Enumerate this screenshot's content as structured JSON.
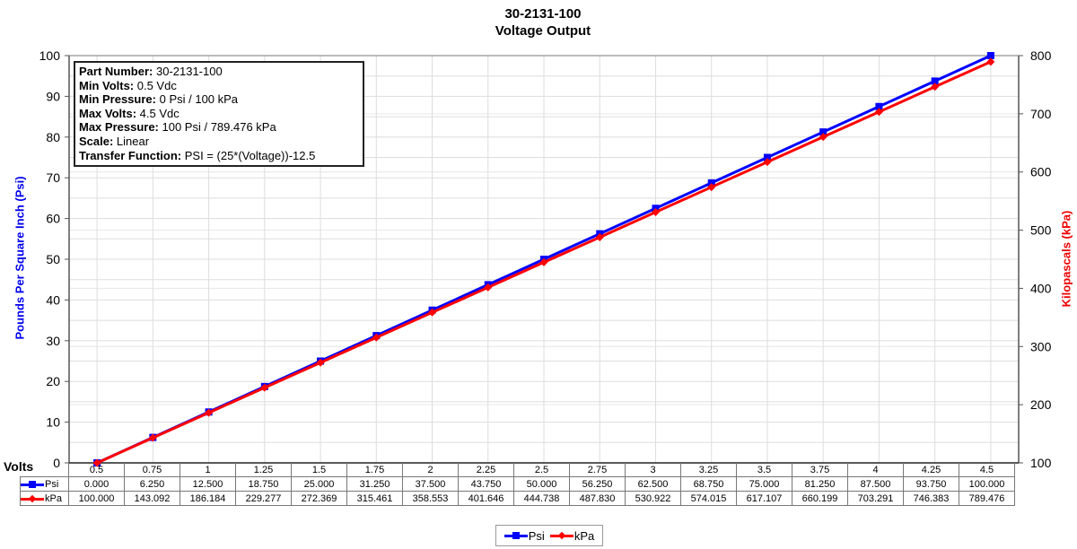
{
  "title": {
    "line1": "30-2131-100",
    "line2": "Voltage Output"
  },
  "info_box": {
    "rows": [
      {
        "label": "Part Number:",
        "value": "30-2131-100"
      },
      {
        "label": "Min Volts:",
        "value": "0.5 Vdc"
      },
      {
        "label": "Min Pressure:",
        "value": "0 Psi / 100 kPa"
      },
      {
        "label": "Max Volts:",
        "value": "4.5 Vdc"
      },
      {
        "label": "Max Pressure:",
        "value": "100 Psi / 789.476 kPa"
      },
      {
        "label": "Scale:",
        "value": "Linear"
      },
      {
        "label": "Transfer Function:",
        "value": "PSI = (25*(Voltage))-12.5"
      }
    ]
  },
  "axes": {
    "left_label": "Pounds Per Square Inch (Psi)",
    "right_label": "Kilopascals (kPa)",
    "x_label": "Volts",
    "left_ticks": [
      "0",
      "10",
      "20",
      "30",
      "40",
      "50",
      "60",
      "70",
      "80",
      "90",
      "100"
    ],
    "right_ticks": [
      "100",
      "200",
      "300",
      "400",
      "500",
      "600",
      "700",
      "800"
    ]
  },
  "table": {
    "categories": [
      "0.5",
      "0.75",
      "1",
      "1.25",
      "1.5",
      "1.75",
      "2",
      "2.25",
      "2.5",
      "2.75",
      "3",
      "3.25",
      "3.5",
      "3.75",
      "4",
      "4.25",
      "4.5"
    ],
    "rows": [
      {
        "name": "Psi",
        "values": [
          "0.000",
          "6.250",
          "12.500",
          "18.750",
          "25.000",
          "31.250",
          "37.500",
          "43.750",
          "50.000",
          "56.250",
          "62.500",
          "68.750",
          "75.000",
          "81.250",
          "87.500",
          "93.750",
          "100.000"
        ]
      },
      {
        "name": "kPa",
        "values": [
          "100.000",
          "143.092",
          "186.184",
          "229.277",
          "272.369",
          "315.461",
          "358.553",
          "401.646",
          "444.738",
          "487.830",
          "530.922",
          "574.015",
          "617.107",
          "660.199",
          "703.291",
          "746.383",
          "789.476"
        ]
      }
    ]
  },
  "legend": {
    "items": [
      {
        "label": "Psi",
        "color": "#0000ff"
      },
      {
        "label": "kPa",
        "color": "#ff0000"
      }
    ]
  },
  "colors": {
    "psi": "#0000ff",
    "kpa": "#ff0000",
    "grid": "#dddddd"
  },
  "chart_data": {
    "type": "line",
    "title": "30-2131-100 Voltage Output",
    "xlabel": "Volts",
    "ylabel": "Pounds Per Square Inch (Psi)",
    "y2label": "Kilopascals (kPa)",
    "x": [
      0.5,
      0.75,
      1,
      1.25,
      1.5,
      1.75,
      2,
      2.25,
      2.5,
      2.75,
      3,
      3.25,
      3.5,
      3.75,
      4,
      4.25,
      4.5
    ],
    "ylim": [
      0,
      100
    ],
    "y2lim": [
      100,
      800
    ],
    "grid": true,
    "legend_position": "bottom",
    "series": [
      {
        "name": "Psi",
        "axis": "left",
        "marker": "square",
        "color": "#0000ff",
        "values": [
          0,
          6.25,
          12.5,
          18.75,
          25,
          31.25,
          37.5,
          43.75,
          50,
          56.25,
          62.5,
          68.75,
          75,
          81.25,
          87.5,
          93.75,
          100
        ]
      },
      {
        "name": "kPa",
        "axis": "right",
        "marker": "diamond",
        "color": "#ff0000",
        "values": [
          100,
          143.092,
          186.184,
          229.277,
          272.369,
          315.461,
          358.553,
          401.646,
          444.738,
          487.83,
          530.922,
          574.015,
          617.107,
          660.199,
          703.291,
          746.383,
          789.476
        ]
      }
    ]
  }
}
